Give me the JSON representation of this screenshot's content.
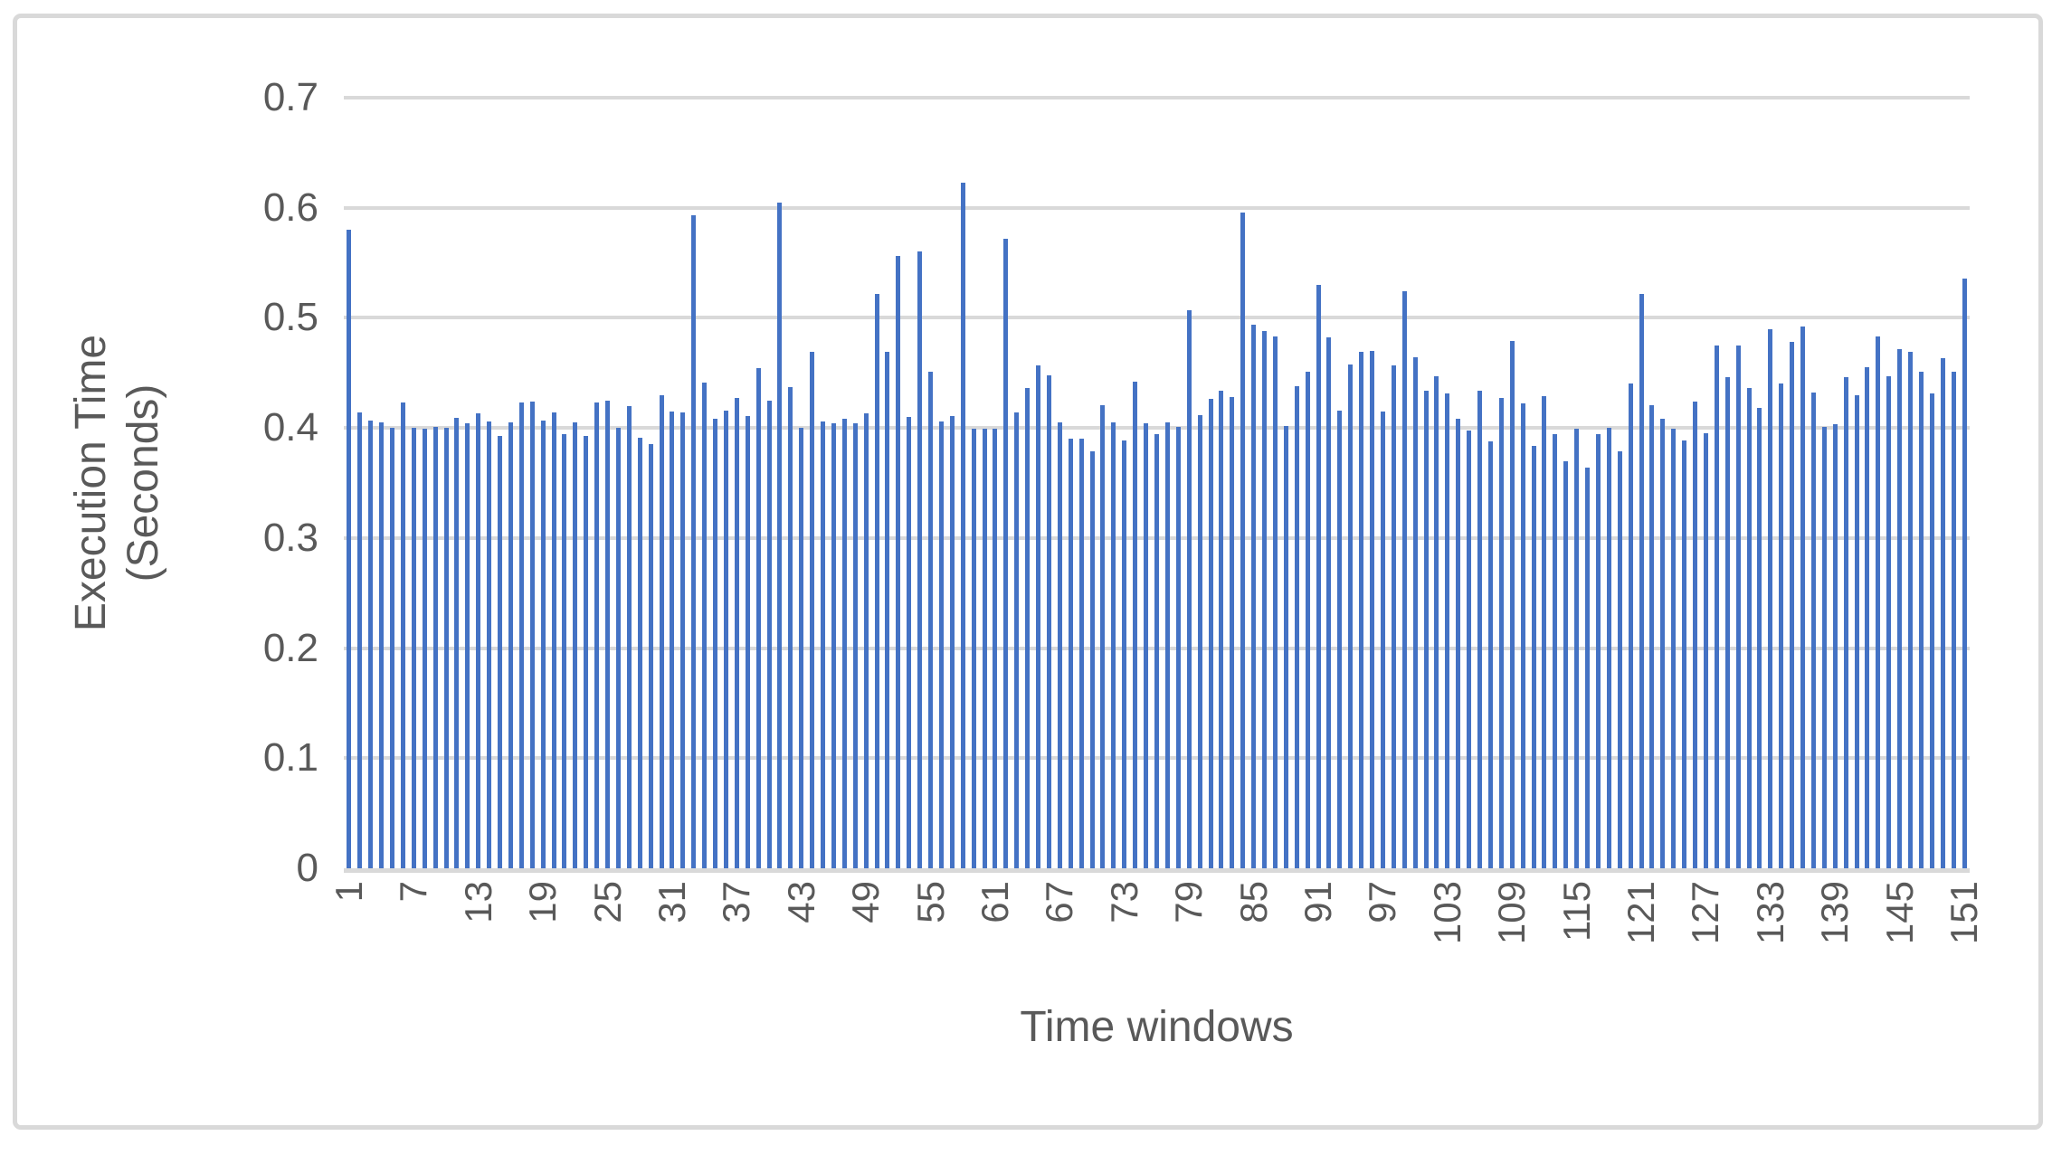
{
  "chart_data": {
    "type": "bar",
    "title": "",
    "xlabel": "Time windows",
    "ylabel_line1": "Execution Time",
    "ylabel_line2": "(Seconds)",
    "ylim": [
      0,
      0.7
    ],
    "y_tick_labels": [
      "0",
      "0.1",
      "0.2",
      "0.3",
      "0.4",
      "0.5",
      "0.6",
      "0.7"
    ],
    "x_tick_start": 1,
    "x_tick_step": 6,
    "x_tick_labels": [
      "1",
      "7",
      "13",
      "19",
      "25",
      "31",
      "37",
      "43",
      "49",
      "55",
      "61",
      "67",
      "73",
      "79",
      "85",
      "91",
      "97",
      "103",
      "109",
      "115",
      "121",
      "127",
      "133",
      "139",
      "145",
      "151"
    ],
    "grid": true,
    "legend": "none",
    "bar_color": "#4472C4",
    "gridline_color": "#D9D9D9",
    "axis_line_color": "#D9D9D9",
    "axis_text_color": "#595959",
    "frame_border_color": "#D9D9D9",
    "categories_range": "1-151",
    "values": [
      0.58,
      0.414,
      0.407,
      0.405,
      0.4,
      0.423,
      0.4,
      0.399,
      0.401,
      0.4,
      0.409,
      0.404,
      0.413,
      0.406,
      0.393,
      0.405,
      0.423,
      0.424,
      0.407,
      0.414,
      0.394,
      0.405,
      0.393,
      0.423,
      0.425,
      0.4,
      0.42,
      0.391,
      0.385,
      0.43,
      0.415,
      0.414,
      0.593,
      0.441,
      0.408,
      0.416,
      0.427,
      0.411,
      0.454,
      0.425,
      0.605,
      0.437,
      0.4,
      0.469,
      0.406,
      0.404,
      0.408,
      0.404,
      0.413,
      0.522,
      0.469,
      0.556,
      0.41,
      0.56,
      0.451,
      0.406,
      0.411,
      0.623,
      0.399,
      0.399,
      0.399,
      0.572,
      0.414,
      0.436,
      0.457,
      0.448,
      0.405,
      0.39,
      0.39,
      0.379,
      0.421,
      0.405,
      0.389,
      0.442,
      0.404,
      0.394,
      0.405,
      0.401,
      0.507,
      0.412,
      0.426,
      0.434,
      0.428,
      0.596,
      0.494,
      0.488,
      0.483,
      0.402,
      0.438,
      0.451,
      0.53,
      0.482,
      0.416,
      0.458,
      0.469,
      0.47,
      0.415,
      0.457,
      0.524,
      0.464,
      0.434,
      0.447,
      0.431,
      0.408,
      0.398,
      0.434,
      0.388,
      0.427,
      0.479,
      0.422,
      0.384,
      0.429,
      0.394,
      0.37,
      0.399,
      0.364,
      0.394,
      0.4,
      0.379,
      0.44,
      0.522,
      0.421,
      0.408,
      0.399,
      0.389,
      0.424,
      0.395,
      0.475,
      0.446,
      0.475,
      0.436,
      0.418,
      0.49,
      0.44,
      0.478,
      0.492,
      0.432,
      0.401,
      0.403,
      0.446,
      0.43,
      0.455,
      0.483,
      0.447,
      0.472,
      0.469,
      0.451,
      0.431,
      0.463,
      0.451,
      0.536
    ]
  },
  "layout_note": "bar chart, no legend, light gray rounded outer border"
}
